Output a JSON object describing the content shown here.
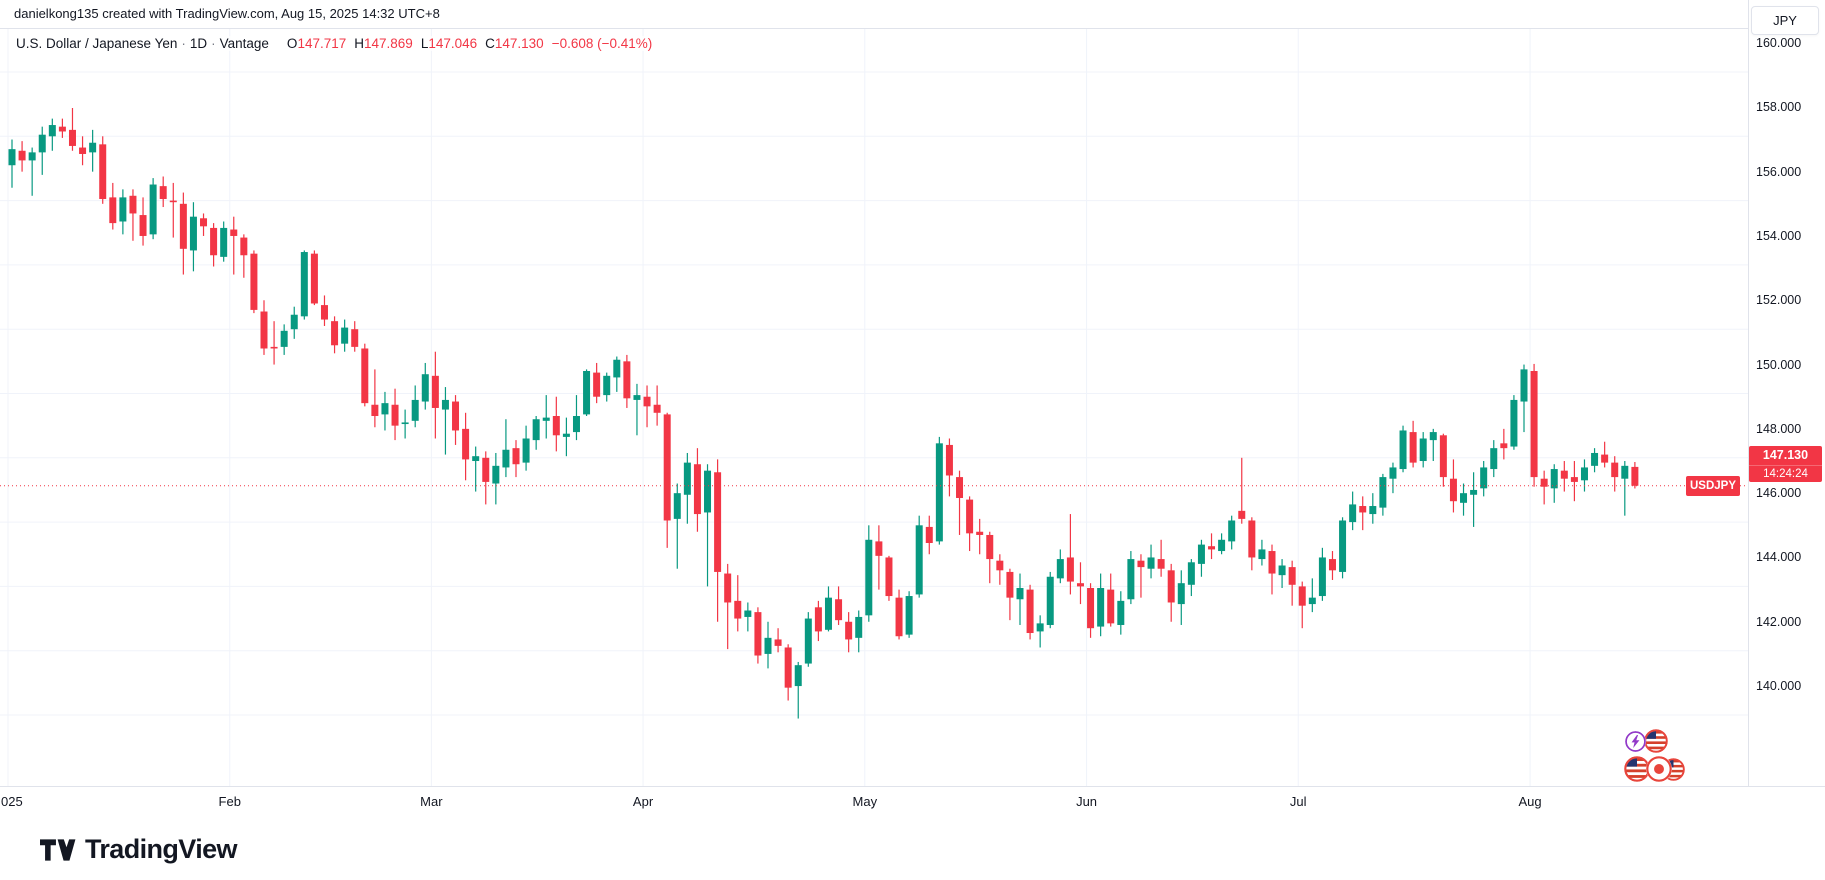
{
  "attribution": "danielkong135 created with TradingView.com, Aug 15, 2025 14:32 UTC+8",
  "legend": {
    "symbol_title": "U.S. Dollar / Japanese Yen",
    "interval": "1D",
    "exchange": "Vantage",
    "o_label": "O",
    "o_value": "147.717",
    "h_label": "H",
    "h_value": "147.869",
    "l_label": "L",
    "l_value": "147.046",
    "c_label": "C",
    "c_value": "147.130",
    "change": "−0.608 (−0.41%)"
  },
  "price_label": {
    "symbol": "USDJPY",
    "price": "147.130",
    "countdown": "14:24:24"
  },
  "axis_right": {
    "currency_button": "JPY"
  },
  "events": {
    "icons": [
      "lightning-event-icon",
      "us-flag-event-icon",
      "us-flag-event-icon",
      "japan-flag-event-icon",
      "us-flag-event-icon"
    ]
  },
  "footer": {
    "brand": "TradingView"
  },
  "chart_data": {
    "type": "candlestick",
    "symbol": "USDJPY",
    "title": "U.S. Dollar / Japanese Yen",
    "interval": "1D",
    "exchange": "Vantage",
    "last_price": 147.13,
    "last_price_text": "147.130",
    "countdown": "14:24:24",
    "colors": {
      "up": "#089981",
      "down": "#f23645",
      "last_price_line": "#f23645",
      "grid": "#f0f3fa"
    },
    "y_axis": {
      "ticks": [
        "160.000",
        "158.000",
        "156.000",
        "154.000",
        "152.000",
        "150.000",
        "148.000",
        "146.000",
        "144.000",
        "142.000",
        "140.000"
      ],
      "min": 139.5,
      "max": 160.4,
      "grid": true
    },
    "x_axis": {
      "labels": [
        {
          "text": "025",
          "index": 0,
          "clipped": true
        },
        {
          "text": "Feb",
          "index": 22
        },
        {
          "text": "Mar",
          "index": 42
        },
        {
          "text": "Apr",
          "index": 63
        },
        {
          "text": "May",
          "index": 85
        },
        {
          "text": "Jun",
          "index": 107
        },
        {
          "text": "Jul",
          "index": 128
        },
        {
          "text": "Aug",
          "index": 151
        }
      ]
    },
    "ohlc_last": {
      "open": 147.717,
      "high": 147.869,
      "low": 147.046,
      "close": 147.13,
      "change": -0.608,
      "change_pct": -0.41
    },
    "candles": [
      [
        157.1,
        157.9,
        156.4,
        157.6
      ],
      [
        157.55,
        157.85,
        156.9,
        157.25
      ],
      [
        157.25,
        157.65,
        156.15,
        157.5
      ],
      [
        157.5,
        158.3,
        156.8,
        158.05
      ],
      [
        158.0,
        158.55,
        157.55,
        158.35
      ],
      [
        158.3,
        158.55,
        157.95,
        158.15
      ],
      [
        158.2,
        158.88,
        157.55,
        157.7
      ],
      [
        157.65,
        158.0,
        157.1,
        157.45
      ],
      [
        157.5,
        158.2,
        156.9,
        157.8
      ],
      [
        157.75,
        158.0,
        155.9,
        156.05
      ],
      [
        156.1,
        156.55,
        155.1,
        155.3
      ],
      [
        155.35,
        156.35,
        154.95,
        156.1
      ],
      [
        156.15,
        156.35,
        154.75,
        155.6
      ],
      [
        155.55,
        156.1,
        154.6,
        154.9
      ],
      [
        154.95,
        156.7,
        154.8,
        156.5
      ],
      [
        156.45,
        156.75,
        155.8,
        156.05
      ],
      [
        156.0,
        156.55,
        154.85,
        155.95
      ],
      [
        155.9,
        156.25,
        153.7,
        154.5
      ],
      [
        154.45,
        155.95,
        153.8,
        155.5
      ],
      [
        155.45,
        155.6,
        154.9,
        155.2
      ],
      [
        155.15,
        155.3,
        153.95,
        154.3
      ],
      [
        154.25,
        155.35,
        154.1,
        155.15
      ],
      [
        155.1,
        155.5,
        153.7,
        154.9
      ],
      [
        154.85,
        154.95,
        153.6,
        154.3
      ],
      [
        154.35,
        154.45,
        152.5,
        152.6
      ],
      [
        152.55,
        152.9,
        151.2,
        151.4
      ],
      [
        151.45,
        152.25,
        150.9,
        151.4
      ],
      [
        151.45,
        152.15,
        151.2,
        151.95
      ],
      [
        152.0,
        152.7,
        151.7,
        152.45
      ],
      [
        152.4,
        154.45,
        152.3,
        154.4
      ],
      [
        154.35,
        154.45,
        152.75,
        152.8
      ],
      [
        152.75,
        153.05,
        152.1,
        152.3
      ],
      [
        152.25,
        152.4,
        151.25,
        151.5
      ],
      [
        151.55,
        152.3,
        151.3,
        152.05
      ],
      [
        152.0,
        152.25,
        151.3,
        151.45
      ],
      [
        151.4,
        151.55,
        149.6,
        149.7
      ],
      [
        149.65,
        150.75,
        148.95,
        149.3
      ],
      [
        149.35,
        150.05,
        148.85,
        149.7
      ],
      [
        149.65,
        150.15,
        148.55,
        149.0
      ],
      [
        149.05,
        149.5,
        148.6,
        149.1
      ],
      [
        149.15,
        150.25,
        148.95,
        149.8
      ],
      [
        149.75,
        150.95,
        149.5,
        150.6
      ],
      [
        150.55,
        151.3,
        148.6,
        149.55
      ],
      [
        149.5,
        150.2,
        148.1,
        149.8
      ],
      [
        149.75,
        149.95,
        148.4,
        148.85
      ],
      [
        148.9,
        149.4,
        147.3,
        147.95
      ],
      [
        147.9,
        148.35,
        146.95,
        148.05
      ],
      [
        148.0,
        148.2,
        146.55,
        147.25
      ],
      [
        147.2,
        148.15,
        146.55,
        147.75
      ],
      [
        147.7,
        149.2,
        147.4,
        148.25
      ],
      [
        148.3,
        148.55,
        147.4,
        147.8
      ],
      [
        147.85,
        149.0,
        147.6,
        148.6
      ],
      [
        148.55,
        149.3,
        148.25,
        149.2
      ],
      [
        149.15,
        149.95,
        148.6,
        149.25
      ],
      [
        149.3,
        149.9,
        148.2,
        148.7
      ],
      [
        148.65,
        149.25,
        148.05,
        148.75
      ],
      [
        148.8,
        149.95,
        148.55,
        149.3
      ],
      [
        149.35,
        150.75,
        149.3,
        150.7
      ],
      [
        150.65,
        150.95,
        149.7,
        149.9
      ],
      [
        149.95,
        150.65,
        149.75,
        150.55
      ],
      [
        150.5,
        151.15,
        150.05,
        151.05
      ],
      [
        151.0,
        151.2,
        149.55,
        149.85
      ],
      [
        149.8,
        150.3,
        148.7,
        149.95
      ],
      [
        149.9,
        150.25,
        148.95,
        149.6
      ],
      [
        149.65,
        150.25,
        149.0,
        149.4
      ],
      [
        149.35,
        149.4,
        145.2,
        146.05
      ],
      [
        146.1,
        147.2,
        144.55,
        146.9
      ],
      [
        146.85,
        148.15,
        145.95,
        147.85
      ],
      [
        147.8,
        148.3,
        145.7,
        146.25
      ],
      [
        146.3,
        147.8,
        144.0,
        147.6
      ],
      [
        147.55,
        147.95,
        142.9,
        144.45
      ],
      [
        144.4,
        144.7,
        142.05,
        143.5
      ],
      [
        143.55,
        144.35,
        142.6,
        143.0
      ],
      [
        143.05,
        143.5,
        142.6,
        143.25
      ],
      [
        143.2,
        143.35,
        141.6,
        141.85
      ],
      [
        141.9,
        142.9,
        141.45,
        142.4
      ],
      [
        142.35,
        142.7,
        141.95,
        142.15
      ],
      [
        142.1,
        142.2,
        140.45,
        140.85
      ],
      [
        140.9,
        141.65,
        139.89,
        141.55
      ],
      [
        141.6,
        143.2,
        141.5,
        143.0
      ],
      [
        143.35,
        143.55,
        142.3,
        142.6
      ],
      [
        142.65,
        144.0,
        142.6,
        143.65
      ],
      [
        143.6,
        144.0,
        142.8,
        142.95
      ],
      [
        142.9,
        143.2,
        141.95,
        142.35
      ],
      [
        142.4,
        143.25,
        141.95,
        143.05
      ],
      [
        143.1,
        145.9,
        142.9,
        145.45
      ],
      [
        145.4,
        145.9,
        143.9,
        144.95
      ],
      [
        144.9,
        144.95,
        143.55,
        143.7
      ],
      [
        143.65,
        143.9,
        142.35,
        142.45
      ],
      [
        142.5,
        143.85,
        142.4,
        143.7
      ],
      [
        143.75,
        146.2,
        143.65,
        145.9
      ],
      [
        145.85,
        146.2,
        145.0,
        145.35
      ],
      [
        145.4,
        148.65,
        145.3,
        148.45
      ],
      [
        148.4,
        148.6,
        146.8,
        147.45
      ],
      [
        147.4,
        147.6,
        145.6,
        146.75
      ],
      [
        146.7,
        146.8,
        145.1,
        145.65
      ],
      [
        145.7,
        146.1,
        145.0,
        145.6
      ],
      [
        145.6,
        145.7,
        144.1,
        144.85
      ],
      [
        144.8,
        145.0,
        144.05,
        144.5
      ],
      [
        144.45,
        144.55,
        142.95,
        143.65
      ],
      [
        143.6,
        144.4,
        142.8,
        143.95
      ],
      [
        143.9,
        144.05,
        142.35,
        142.55
      ],
      [
        142.6,
        143.1,
        142.1,
        142.85
      ],
      [
        142.8,
        144.45,
        142.7,
        144.3
      ],
      [
        144.25,
        145.15,
        144.1,
        144.85
      ],
      [
        144.9,
        146.25,
        143.75,
        144.15
      ],
      [
        144.1,
        144.75,
        143.45,
        144.0
      ],
      [
        143.95,
        144.1,
        142.4,
        142.7
      ],
      [
        142.75,
        144.4,
        142.45,
        143.95
      ],
      [
        143.9,
        144.4,
        142.75,
        142.85
      ],
      [
        142.8,
        143.85,
        142.5,
        143.55
      ],
      [
        143.6,
        145.1,
        143.45,
        144.85
      ],
      [
        144.8,
        145.0,
        143.65,
        144.6
      ],
      [
        144.55,
        145.3,
        144.25,
        144.9
      ],
      [
        144.85,
        145.45,
        144.3,
        144.55
      ],
      [
        144.5,
        144.7,
        142.9,
        143.5
      ],
      [
        143.45,
        144.5,
        142.8,
        144.1
      ],
      [
        144.05,
        144.85,
        143.7,
        144.75
      ],
      [
        144.7,
        145.45,
        144.3,
        145.3
      ],
      [
        145.25,
        145.65,
        144.85,
        145.15
      ],
      [
        145.1,
        145.65,
        145.0,
        145.45
      ],
      [
        145.4,
        146.2,
        145.15,
        146.05
      ],
      [
        146.35,
        148.0,
        145.95,
        146.1
      ],
      [
        146.05,
        146.15,
        144.5,
        144.9
      ],
      [
        144.85,
        145.45,
        144.65,
        145.15
      ],
      [
        145.1,
        145.3,
        143.75,
        144.4
      ],
      [
        144.35,
        144.85,
        143.95,
        144.65
      ],
      [
        144.6,
        144.8,
        143.4,
        144.05
      ],
      [
        144.0,
        144.15,
        142.7,
        143.4
      ],
      [
        143.45,
        144.25,
        143.2,
        143.65
      ],
      [
        143.7,
        145.2,
        143.55,
        144.9
      ],
      [
        144.85,
        145.1,
        144.2,
        144.5
      ],
      [
        144.45,
        146.15,
        144.25,
        146.05
      ],
      [
        146.0,
        146.95,
        145.75,
        146.55
      ],
      [
        146.5,
        146.8,
        145.75,
        146.3
      ],
      [
        146.25,
        146.9,
        145.95,
        146.5
      ],
      [
        146.45,
        147.5,
        146.2,
        147.4
      ],
      [
        147.35,
        147.85,
        146.9,
        147.7
      ],
      [
        147.65,
        149.0,
        147.55,
        148.85
      ],
      [
        148.8,
        149.15,
        147.7,
        147.85
      ],
      [
        147.9,
        148.8,
        147.7,
        148.6
      ],
      [
        148.55,
        148.9,
        147.9,
        148.8
      ],
      [
        148.7,
        148.75,
        147.1,
        147.4
      ],
      [
        147.35,
        147.95,
        146.3,
        146.65
      ],
      [
        146.6,
        147.2,
        146.2,
        146.9
      ],
      [
        146.85,
        147.55,
        145.85,
        147.0
      ],
      [
        147.05,
        147.9,
        146.8,
        147.7
      ],
      [
        147.65,
        148.55,
        147.4,
        148.3
      ],
      [
        148.45,
        148.9,
        147.95,
        148.3
      ],
      [
        148.35,
        149.95,
        148.25,
        149.8
      ],
      [
        149.75,
        150.9,
        148.8,
        150.75
      ],
      [
        150.7,
        150.92,
        147.1,
        147.4
      ],
      [
        147.35,
        147.6,
        146.55,
        147.1
      ],
      [
        147.05,
        147.8,
        146.6,
        147.65
      ],
      [
        147.6,
        147.9,
        146.95,
        147.35
      ],
      [
        147.4,
        147.9,
        146.65,
        147.25
      ],
      [
        147.3,
        147.95,
        146.95,
        147.7
      ],
      [
        147.75,
        148.3,
        147.55,
        148.15
      ],
      [
        148.1,
        148.5,
        147.7,
        147.85
      ],
      [
        147.85,
        148.05,
        146.95,
        147.4
      ],
      [
        147.35,
        147.9,
        146.2,
        147.75
      ],
      [
        147.717,
        147.869,
        147.046,
        147.13
      ]
    ]
  }
}
